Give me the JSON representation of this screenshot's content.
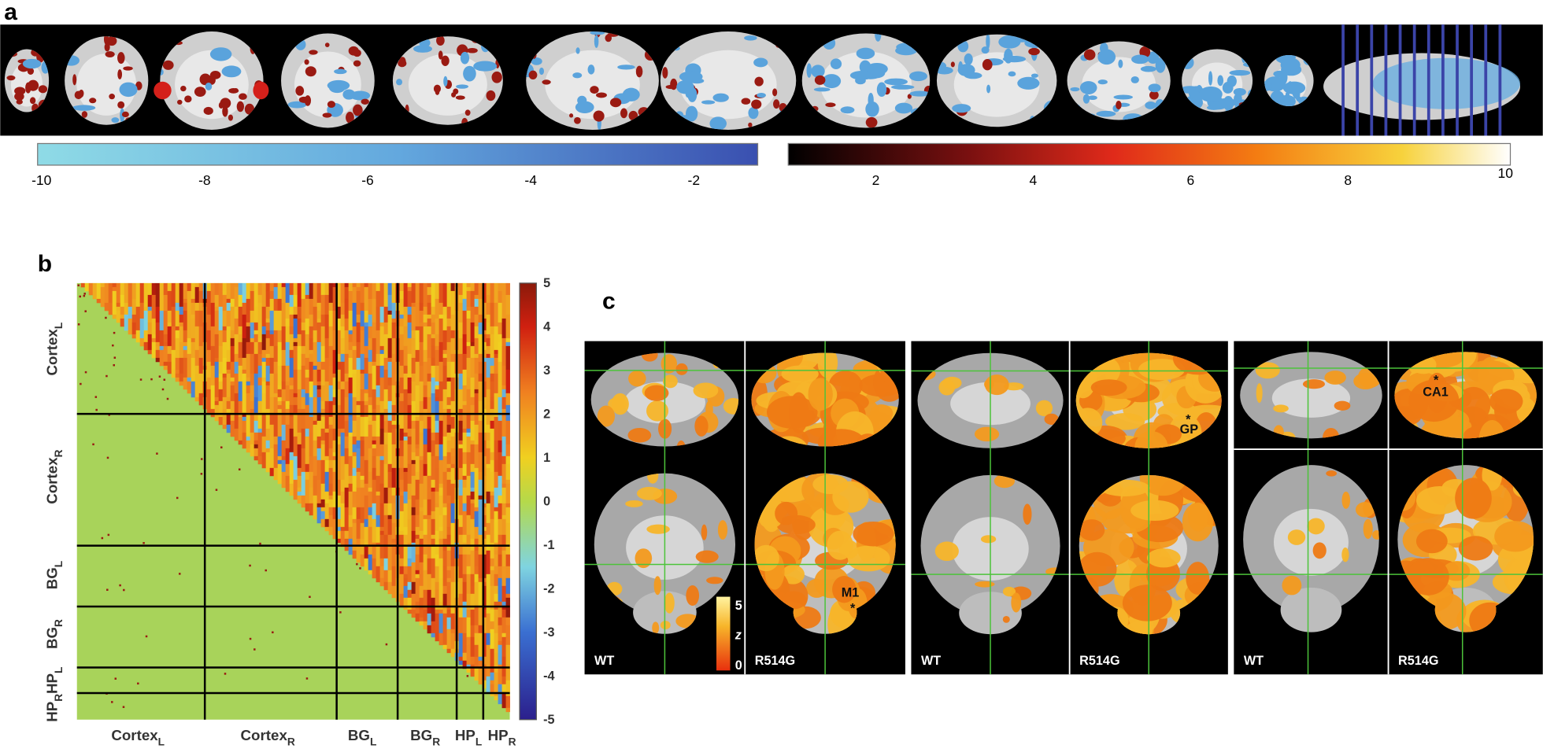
{
  "panels": {
    "a": {
      "label": "a",
      "colorbar_negative": {
        "ticks": [
          -10,
          -8,
          -6,
          -4,
          -2
        ]
      },
      "colorbar_positive": {
        "ticks": [
          2,
          4,
          6,
          8,
          10
        ]
      }
    },
    "b": {
      "label": "b",
      "colorbar_ticks": [
        5,
        4,
        3,
        2,
        1,
        0,
        -1,
        -2,
        -3,
        -4,
        -5
      ],
      "regions": [
        {
          "name": "Cortex",
          "sub": "L"
        },
        {
          "name": "Cortex",
          "sub": "R"
        },
        {
          "name": "BG",
          "sub": "L"
        },
        {
          "name": "BG",
          "sub": "R"
        },
        {
          "name": "HP",
          "sub": "L"
        },
        {
          "name": "HP",
          "sub": "R"
        }
      ]
    },
    "c": {
      "label": "c",
      "groups": [
        {
          "left": "WT",
          "right": "R514G",
          "annotation": "M1"
        },
        {
          "left": "WT",
          "right": "R514G",
          "annotation": "GP"
        },
        {
          "left": "WT",
          "right": "R514G",
          "annotation": "CA1"
        }
      ],
      "star": "*",
      "z_colorbar": {
        "max": 5,
        "symbol": "z",
        "min": 0
      }
    }
  }
}
